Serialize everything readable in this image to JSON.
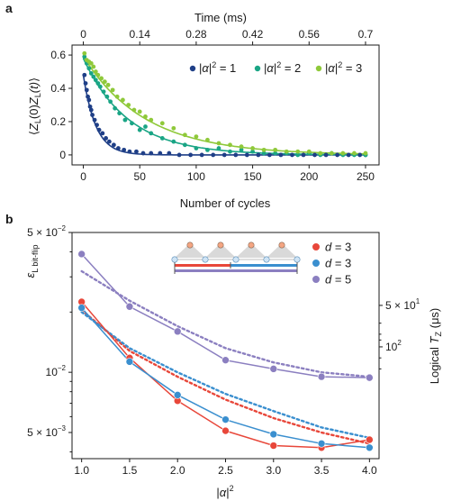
{
  "chart_data": [
    {
      "panel_label": "a",
      "type": "scatter",
      "xlabel": "Number of cycles",
      "ylabel": "⟨Z_L(0)Z_L(t)⟩",
      "ylabel_parts": {
        "open": "⟨",
        "z1": "Z",
        "s1": "L",
        "mid": "(0)",
        "z2": "Z",
        "s2": "L",
        "t": "(t)",
        "close": "⟩"
      },
      "top_xlabel": "Time (ms)",
      "xlim": [
        -10,
        262
      ],
      "ylim": [
        -0.06,
        0.66
      ],
      "x_ticks": [
        "0",
        "50",
        "100",
        "150",
        "200",
        "250"
      ],
      "x_tick_values": [
        0,
        50,
        100,
        150,
        200,
        250
      ],
      "y_ticks": [
        "0",
        "0.2",
        "0.4",
        "0.6"
      ],
      "y_tick_values": [
        0,
        0.2,
        0.4,
        0.6
      ],
      "top_ticks": [
        "0",
        "0.14",
        "0.28",
        "0.42",
        "0.56",
        "0.7"
      ],
      "top_tick_values": [
        0,
        50,
        100,
        150,
        200,
        250
      ],
      "legend_position": "top-right",
      "series": [
        {
          "name": "|α|² = 1",
          "legend": {
            "pre": "|",
            "alpha": "α",
            "post": "|",
            "sup": "2",
            "eq": " = 1"
          },
          "color": "#1f3f87",
          "fit_tau": 11,
          "fit_a": 0.48,
          "points": [
            [
              1,
              0.48
            ],
            [
              2,
              0.43
            ],
            [
              3,
              0.39
            ],
            [
              4,
              0.35
            ],
            [
              5,
              0.33
            ],
            [
              6,
              0.29
            ],
            [
              7,
              0.27
            ],
            [
              8,
              0.24
            ],
            [
              10,
              0.21
            ],
            [
              12,
              0.18
            ],
            [
              14,
              0.15
            ],
            [
              17,
              0.13
            ],
            [
              20,
              0.1
            ],
            [
              23,
              0.08
            ],
            [
              27,
              0.06
            ],
            [
              31,
              0.04
            ],
            [
              36,
              0.03
            ],
            [
              41,
              0.02
            ],
            [
              47,
              0.02
            ],
            [
              53,
              0.01
            ],
            [
              60,
              0.01
            ],
            [
              68,
              0.01
            ],
            [
              76,
              0.01
            ],
            [
              85,
              0.0
            ],
            [
              95,
              0.0
            ],
            [
              105,
              0.0
            ],
            [
              115,
              0.0
            ],
            [
              125,
              0.0
            ],
            [
              135,
              0.0
            ],
            [
              145,
              0.0
            ],
            [
              155,
              0.0
            ],
            [
              165,
              0.0
            ],
            [
              175,
              0.0
            ],
            [
              185,
              0.0
            ],
            [
              195,
              0.0
            ],
            [
              205,
              0.0
            ],
            [
              215,
              0.0
            ],
            [
              225,
              0.0
            ],
            [
              235,
              0.0
            ],
            [
              245,
              0.0
            ],
            [
              250,
              0.0
            ]
          ]
        },
        {
          "name": "|α|² = 2",
          "legend": {
            "pre": "|",
            "alpha": "α",
            "post": "|",
            "sup": "2",
            "eq": " = 2"
          },
          "color": "#1aa585",
          "fit_tau": 40,
          "fit_a": 0.58,
          "points": [
            [
              1,
              0.59
            ],
            [
              3,
              0.55
            ],
            [
              5,
              0.52
            ],
            [
              7,
              0.49
            ],
            [
              9,
              0.47
            ],
            [
              11,
              0.45
            ],
            [
              13,
              0.43
            ],
            [
              15,
              0.41
            ],
            [
              18,
              0.38
            ],
            [
              21,
              0.35
            ],
            [
              24,
              0.32
            ],
            [
              28,
              0.28
            ],
            [
              32,
              0.25
            ],
            [
              37,
              0.21
            ],
            [
              43,
              0.19
            ],
            [
              50,
              0.15
            ],
            [
              55,
              0.17
            ],
            [
              60,
              0.13
            ],
            [
              70,
              0.1
            ],
            [
              80,
              0.08
            ],
            [
              90,
              0.06
            ],
            [
              100,
              0.04
            ],
            [
              110,
              0.03
            ],
            [
              120,
              0.04
            ],
            [
              130,
              0.02
            ],
            [
              140,
              0.03
            ],
            [
              150,
              0.02
            ],
            [
              160,
              0.01
            ],
            [
              170,
              0.01
            ],
            [
              180,
              0.01
            ],
            [
              190,
              0.0
            ],
            [
              200,
              0.01
            ],
            [
              210,
              0.0
            ],
            [
              220,
              0.01
            ],
            [
              230,
              0.0
            ],
            [
              240,
              0.0
            ],
            [
              250,
              0.0
            ]
          ]
        },
        {
          "name": "|α|² = 3",
          "legend": {
            "pre": "|",
            "alpha": "α",
            "post": "|",
            "sup": "2",
            "eq": " = 3"
          },
          "color": "#8fc93a",
          "fit_tau": 55,
          "fit_a": 0.59,
          "points": [
            [
              1,
              0.61
            ],
            [
              3,
              0.57
            ],
            [
              5,
              0.56
            ],
            [
              7,
              0.55
            ],
            [
              9,
              0.53
            ],
            [
              11,
              0.5
            ],
            [
              13,
              0.48
            ],
            [
              16,
              0.46
            ],
            [
              19,
              0.44
            ],
            [
              22,
              0.42
            ],
            [
              26,
              0.39
            ],
            [
              30,
              0.35
            ],
            [
              35,
              0.33
            ],
            [
              40,
              0.3
            ],
            [
              45,
              0.27
            ],
            [
              50,
              0.26
            ],
            [
              55,
              0.23
            ],
            [
              60,
              0.21
            ],
            [
              70,
              0.19
            ],
            [
              80,
              0.16
            ],
            [
              90,
              0.12
            ],
            [
              100,
              0.11
            ],
            [
              110,
              0.09
            ],
            [
              120,
              0.07
            ],
            [
              130,
              0.06
            ],
            [
              140,
              0.05
            ],
            [
              150,
              0.04
            ],
            [
              160,
              0.03
            ],
            [
              170,
              0.03
            ],
            [
              180,
              0.02
            ],
            [
              190,
              0.02
            ],
            [
              200,
              0.02
            ],
            [
              210,
              0.01
            ],
            [
              220,
              0.01
            ],
            [
              230,
              0.01
            ],
            [
              240,
              0.01
            ],
            [
              250,
              0.01
            ]
          ]
        }
      ]
    },
    {
      "panel_label": "b",
      "type": "line",
      "xlabel": "|α|²",
      "xlabel_parts": {
        "pre": "|",
        "alpha": "α",
        "post": "|",
        "sup": "2"
      },
      "ylabel": "ε L bit-flip",
      "ylabel_parts": {
        "eps": "ε",
        "sub": "L bit-flip"
      },
      "ylabel_right": "Logical T_Z (μs)",
      "ylabel_right_parts": {
        "pre": "Logical ",
        "t": "T",
        "sub": "Z",
        "post": " (μs)"
      },
      "y_scale": "log",
      "xlim": [
        0.9,
        4.1
      ],
      "ylim": [
        0.0037,
        0.05
      ],
      "x_ticks": [
        "1.0",
        "1.5",
        "2.0",
        "2.5",
        "3.0",
        "3.5",
        "4.0"
      ],
      "x_tick_values": [
        1.0,
        1.5,
        2.0,
        2.5,
        3.0,
        3.5,
        4.0
      ],
      "y_ticks": [
        {
          "value": 0.05,
          "mant": "5 × 10",
          "exp": "−2"
        },
        {
          "value": 0.01,
          "mant": "10",
          "exp": "−2"
        },
        {
          "value": 0.005,
          "mant": "5 × 10",
          "exp": "−3"
        }
      ],
      "right_ticks": [
        {
          "y_at": 0.0216,
          "mant": "5 × 10",
          "exp": "1"
        },
        {
          "y_at": 0.0134,
          "mant": "10",
          "exp": "2"
        }
      ],
      "legend_position": "top-right",
      "series": [
        {
          "name": "d = 3",
          "legend": {
            "d": "d",
            "eq": " = 3"
          },
          "color": "#e8473a",
          "x": [
            1.0,
            1.5,
            2.0,
            2.5,
            3.0,
            3.5,
            4.0
          ],
          "y": [
            0.0225,
            0.0118,
            0.0072,
            0.0051,
            0.0043,
            0.0042,
            0.0046
          ],
          "dotted_y": [
            0.0205,
            0.0128,
            0.0095,
            0.0073,
            0.0059,
            0.005,
            0.0044
          ]
        },
        {
          "name": "d = 3",
          "legend": {
            "d": "d",
            "eq": " = 3"
          },
          "color": "#3a8fcf",
          "x": [
            1.0,
            1.5,
            2.0,
            2.5,
            3.0,
            3.5,
            4.0
          ],
          "y": [
            0.021,
            0.0113,
            0.0077,
            0.0058,
            0.0049,
            0.0044,
            0.0042
          ],
          "dotted_y": [
            0.02,
            0.0132,
            0.01,
            0.0078,
            0.0064,
            0.0053,
            0.0047
          ]
        },
        {
          "name": "d = 5",
          "legend": {
            "d": "d",
            "eq": " = 5"
          },
          "color": "#8b7fc0",
          "x": [
            1.0,
            1.5,
            2.0,
            2.5,
            3.0,
            3.5,
            4.0
          ],
          "y": [
            0.039,
            0.0213,
            0.016,
            0.0115,
            0.0104,
            0.0095,
            0.0094
          ],
          "dotted_y": [
            0.032,
            0.0228,
            0.017,
            0.0132,
            0.0112,
            0.01,
            0.0095
          ]
        }
      ]
    }
  ]
}
